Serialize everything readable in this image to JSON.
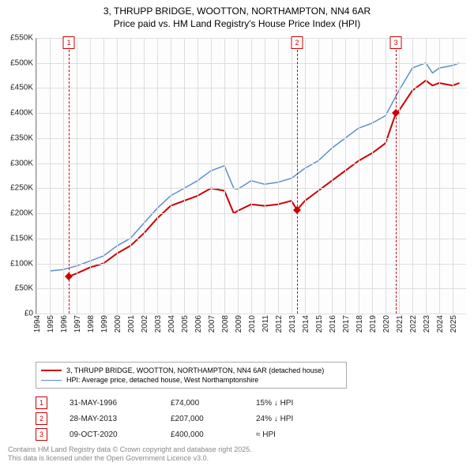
{
  "title_line1": "3, THRUPP BRIDGE, WOOTTON, NORTHAMPTON, NN4 6AR",
  "title_line2": "Price paid vs. HM Land Registry's House Price Index (HPI)",
  "chart": {
    "type": "line",
    "background_color": "#fdfdfe",
    "grid_color": "#dddddd",
    "axis_color": "#888888",
    "x": {
      "min": 1994,
      "max": 2026,
      "ticks": [
        1994,
        1995,
        1996,
        1997,
        1998,
        1999,
        2000,
        2001,
        2002,
        2003,
        2004,
        2005,
        2006,
        2007,
        2008,
        2009,
        2010,
        2011,
        2012,
        2013,
        2014,
        2015,
        2016,
        2017,
        2018,
        2019,
        2020,
        2021,
        2022,
        2023,
        2024,
        2025
      ],
      "label_fontsize": 10,
      "label_rotation_deg": -90
    },
    "y": {
      "min": 0,
      "max": 550000,
      "ticks": [
        0,
        50000,
        100000,
        150000,
        200000,
        250000,
        300000,
        350000,
        400000,
        450000,
        500000,
        550000
      ],
      "tick_labels": [
        "£0",
        "£50K",
        "£100K",
        "£150K",
        "£200K",
        "£250K",
        "£300K",
        "£350K",
        "£400K",
        "£450K",
        "£500K",
        "£550K"
      ],
      "label_fontsize": 10
    }
  },
  "series": [
    {
      "name": "3, THRUPP BRIDGE, WOOTTON, NORTHAMPTON, NN4 6AR (detached house)",
      "color": "#cc0000",
      "line_width": 2,
      "points": [
        [
          1996.42,
          74000
        ],
        [
          1997,
          80000
        ],
        [
          1998,
          92000
        ],
        [
          1999,
          100000
        ],
        [
          2000,
          120000
        ],
        [
          2001,
          135000
        ],
        [
          2002,
          160000
        ],
        [
          2003,
          190000
        ],
        [
          2004,
          215000
        ],
        [
          2005,
          225000
        ],
        [
          2006,
          235000
        ],
        [
          2007,
          250000
        ],
        [
          2008,
          245000
        ],
        [
          2008.7,
          200000
        ],
        [
          2009,
          205000
        ],
        [
          2010,
          218000
        ],
        [
          2011,
          215000
        ],
        [
          2012,
          218000
        ],
        [
          2013,
          225000
        ],
        [
          2013.4,
          207000
        ],
        [
          2013.42,
          207000
        ],
        [
          2014,
          225000
        ],
        [
          2015,
          245000
        ],
        [
          2016,
          265000
        ],
        [
          2017,
          285000
        ],
        [
          2018,
          305000
        ],
        [
          2019,
          320000
        ],
        [
          2020,
          340000
        ],
        [
          2020.77,
          400000
        ],
        [
          2021,
          405000
        ],
        [
          2022,
          445000
        ],
        [
          2023,
          465000
        ],
        [
          2023.5,
          455000
        ],
        [
          2024,
          460000
        ],
        [
          2025,
          455000
        ],
        [
          2025.5,
          460000
        ]
      ]
    },
    {
      "name": "HPI: Average price, detached house, West Northamptonshire",
      "color": "#5b8fc7",
      "line_width": 1.5,
      "points": [
        [
          1995,
          85000
        ],
        [
          1996,
          88000
        ],
        [
          1997,
          95000
        ],
        [
          1998,
          105000
        ],
        [
          1999,
          115000
        ],
        [
          2000,
          135000
        ],
        [
          2001,
          150000
        ],
        [
          2002,
          180000
        ],
        [
          2003,
          210000
        ],
        [
          2004,
          235000
        ],
        [
          2005,
          250000
        ],
        [
          2006,
          265000
        ],
        [
          2007,
          285000
        ],
        [
          2008,
          295000
        ],
        [
          2008.7,
          250000
        ],
        [
          2009,
          248000
        ],
        [
          2010,
          265000
        ],
        [
          2011,
          258000
        ],
        [
          2012,
          262000
        ],
        [
          2013,
          270000
        ],
        [
          2014,
          290000
        ],
        [
          2015,
          305000
        ],
        [
          2016,
          330000
        ],
        [
          2017,
          350000
        ],
        [
          2018,
          370000
        ],
        [
          2019,
          380000
        ],
        [
          2020,
          395000
        ],
        [
          2021,
          445000
        ],
        [
          2022,
          490000
        ],
        [
          2023,
          500000
        ],
        [
          2023.5,
          480000
        ],
        [
          2024,
          490000
        ],
        [
          2025,
          495000
        ],
        [
          2025.5,
          500000
        ]
      ]
    }
  ],
  "events": [
    {
      "num": "1",
      "x": 1996.42,
      "date": "31-MAY-1996",
      "price": "£74,000",
      "delta": "15% ↓ HPI",
      "color": "#cc0000",
      "marker_value": 74000
    },
    {
      "num": "2",
      "x": 2013.41,
      "date": "28-MAY-2013",
      "price": "£207,000",
      "delta": "24% ↓ HPI",
      "color": "#cc0000",
      "marker_value": 207000
    },
    {
      "num": "3",
      "x": 2020.77,
      "date": "09-OCT-2020",
      "price": "£400,000",
      "delta": "≈ HPI",
      "color": "#cc0000",
      "marker_value": 400000
    }
  ],
  "legend": {
    "border_color": "#aaaaaa",
    "label_fontsize": 9
  },
  "footer_line1": "Contains HM Land Registry data © Crown copyright and database right 2025.",
  "footer_line2": "This data is licensed under the Open Government Licence v3.0.",
  "footer_color": "#888888"
}
